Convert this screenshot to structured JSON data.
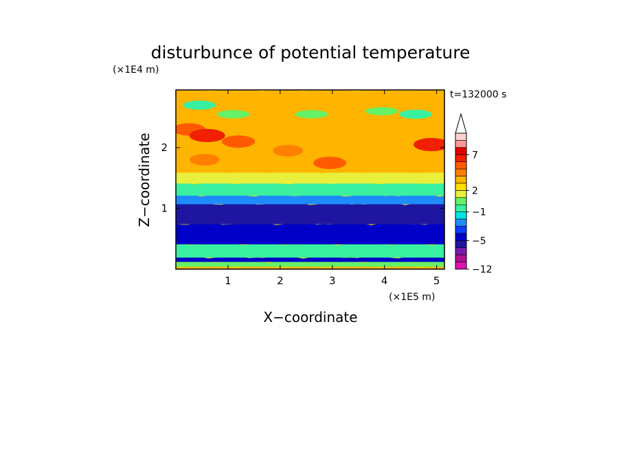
{
  "chart_data": {
    "type": "heatmap",
    "title": "disturbunce of potential temperature",
    "time_label": "t=132000 s",
    "xlabel": "X−coordinate",
    "ylabel": "Z−coordinate",
    "x_unit": "(×1E5 m)",
    "y_unit": "(×1E4 m)",
    "xlim": [
      0,
      5.15
    ],
    "ylim": [
      0,
      2.95
    ],
    "x_ticks": [
      "1",
      "2",
      "3",
      "4",
      "5"
    ],
    "y_ticks": [
      "1",
      "2"
    ],
    "colorbar": {
      "levels": [
        -12,
        -10,
        -8,
        -6,
        -5,
        -4,
        -3,
        -2,
        -1,
        0,
        1,
        2,
        3,
        4,
        5,
        6,
        7,
        8,
        9,
        10
      ],
      "labels": [
        "−12",
        "−5",
        "−1",
        "2",
        "7"
      ],
      "colors": [
        "#ff33cc",
        "#e010b0",
        "#b01090",
        "#7a1ab0",
        "#1e16a0",
        "#0000c8",
        "#0a3cff",
        "#1e8cff",
        "#00e6e6",
        "#38f0a0",
        "#66f266",
        "#e8f03c",
        "#ffe000",
        "#ffb400",
        "#ff8000",
        "#ff5a00",
        "#f02000",
        "#e00000",
        "#ff9a9a",
        "#ffd0d0",
        "#ffffff"
      ]
    },
    "bands": [
      {
        "z": [
          0.0,
          0.05
        ],
        "mean_level": 3
      },
      {
        "z": [
          0.05,
          0.13
        ],
        "mean_level": 0
      },
      {
        "z": [
          0.13,
          0.2
        ],
        "mean_level": -5
      },
      {
        "z": [
          0.2,
          0.42
        ],
        "mean_level": -1
      },
      {
        "z": [
          0.42,
          0.75
        ],
        "mean_level": -5
      },
      {
        "z": [
          0.75,
          1.08
        ],
        "mean_level": -6
      },
      {
        "z": [
          1.08,
          1.22
        ],
        "mean_level": -3
      },
      {
        "z": [
          1.22,
          1.42
        ],
        "mean_level": -1
      },
      {
        "z": [
          1.42,
          1.6
        ],
        "mean_level": 1
      },
      {
        "z": [
          1.6,
          2.95
        ],
        "mean_level": 3
      }
    ],
    "features": [
      {
        "x": 0.25,
        "z": 2.3,
        "level": 5
      },
      {
        "x": 0.6,
        "z": 2.2,
        "level": 6
      },
      {
        "x": 1.2,
        "z": 2.1,
        "level": 5
      },
      {
        "x": 2.95,
        "z": 1.75,
        "level": 5
      },
      {
        "x": 4.9,
        "z": 2.05,
        "level": 6
      },
      {
        "x": 0.55,
        "z": 1.8,
        "level": 4
      },
      {
        "x": 2.15,
        "z": 1.95,
        "level": 4
      },
      {
        "x": 0.45,
        "z": 2.7,
        "level": -1
      },
      {
        "x": 1.1,
        "z": 2.55,
        "level": 0
      },
      {
        "x": 2.6,
        "z": 2.55,
        "level": 0
      },
      {
        "x": 3.95,
        "z": 2.6,
        "level": 0
      },
      {
        "x": 4.6,
        "z": 2.55,
        "level": -1
      }
    ]
  }
}
